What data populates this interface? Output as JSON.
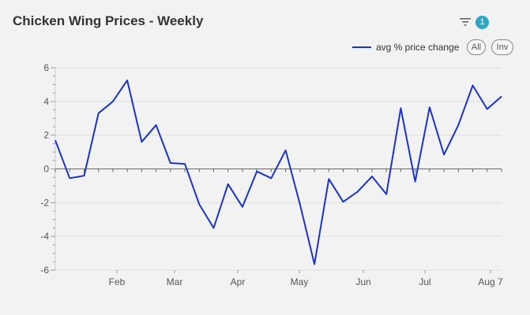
{
  "header": {
    "title": "Chicken Wing Prices - Weekly",
    "filter_count": "1"
  },
  "legend": {
    "all_label": "All",
    "inv_label": "Inv"
  },
  "icons": {
    "filter": "filter-icon"
  },
  "colors": {
    "line": "#1a33cc",
    "badge": "#29a8c7",
    "background": "#f2f2f2"
  },
  "chart_data": {
    "type": "line",
    "title": "Chicken Wing Prices - Weekly",
    "xlabel": "",
    "ylabel": "",
    "ylim": [
      -6,
      6
    ],
    "yticks": [
      6,
      4,
      2,
      0,
      -2,
      -4,
      -6
    ],
    "x_tick_labels": [
      "Feb",
      "Mar",
      "Apr",
      "May",
      "Jun",
      "Jul",
      "Aug 7"
    ],
    "grid": true,
    "legend_position": "top-right",
    "series": [
      {
        "name": "avg % price change",
        "values": [
          1.7,
          -0.55,
          -0.4,
          3.3,
          4.0,
          5.25,
          1.6,
          2.6,
          0.35,
          0.3,
          -2.1,
          -3.5,
          -0.9,
          -2.25,
          -0.15,
          -0.55,
          1.1,
          -2.1,
          -5.65,
          -0.6,
          -1.95,
          -1.35,
          -0.45,
          -1.5,
          3.6,
          -0.75,
          3.65,
          0.85,
          2.6,
          4.95,
          3.55,
          4.3
        ]
      }
    ]
  }
}
